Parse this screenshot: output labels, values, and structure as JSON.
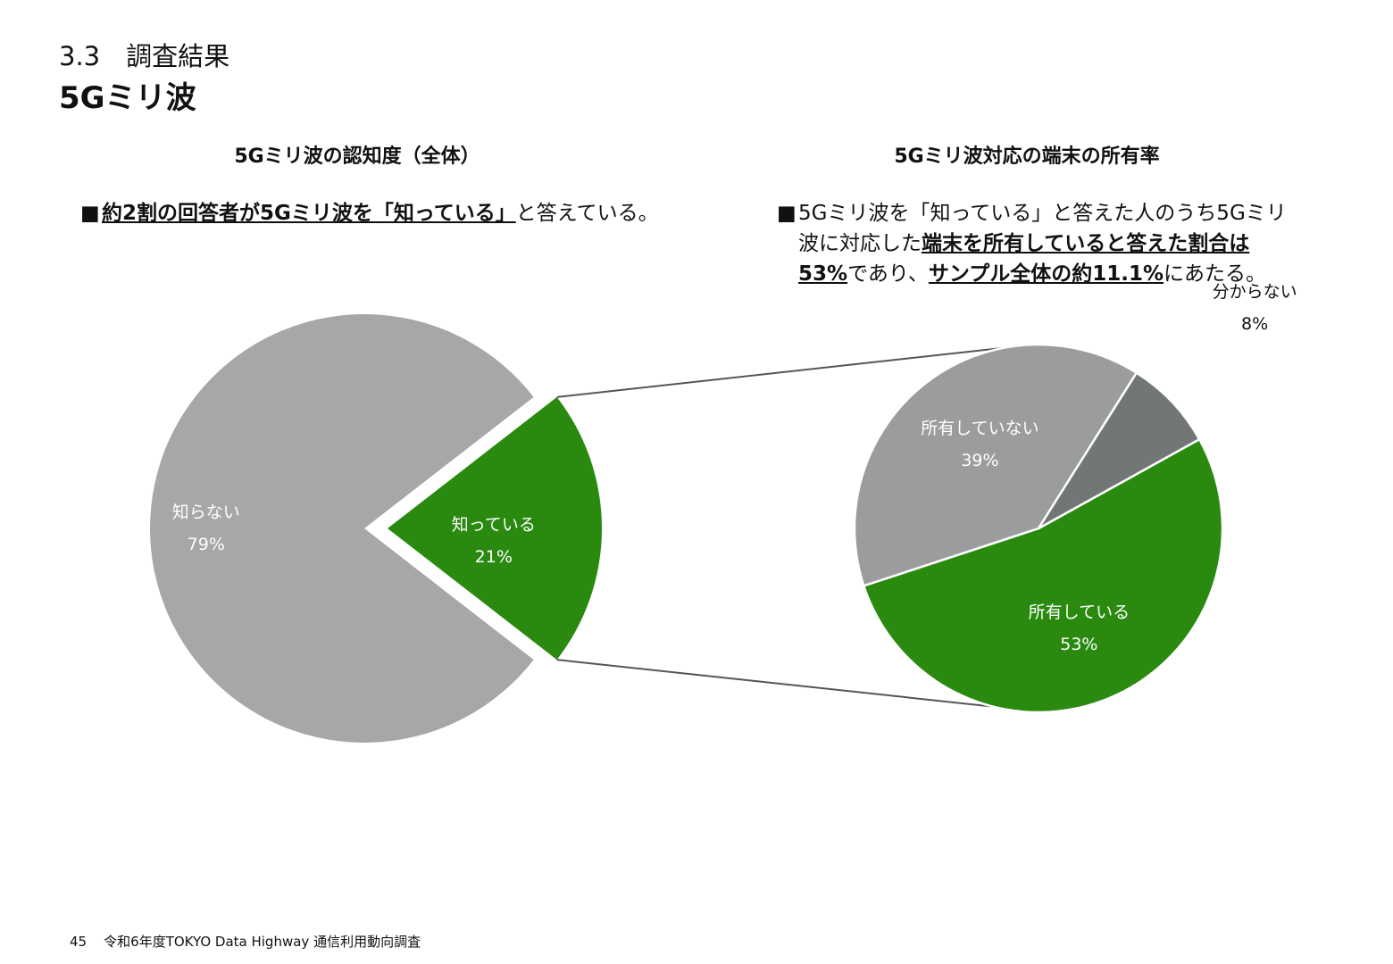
{
  "header": {
    "section_number": "3.3　調査結果",
    "title": "5Gミリ波"
  },
  "left_panel": {
    "title": "5Gミリ波の認知度（全体）",
    "bullet_mark": "■",
    "bullet_underlined": "約2割の回答者が5Gミリ波を「知っている」",
    "bullet_rest": "と答えている。"
  },
  "right_panel": {
    "title": "5Gミリ波対応の端末の所有率",
    "bullet_mark": "■",
    "bullet_part1": "5Gミリ波を「知っている」と答えた人のうち5Gミリ波に対応した",
    "bullet_underlined1": "端末を所有していると答えた割合は53%",
    "bullet_part2": "であり、",
    "bullet_underlined2": "サンプル全体の約11.1%",
    "bullet_part3": "にあたる。"
  },
  "chart_data": [
    {
      "type": "pie",
      "title": "5Gミリ波の認知度（全体）",
      "slices": [
        {
          "label": "知らない",
          "value": 79,
          "display": "79%",
          "color": "#a6a7a8",
          "label_color": "#ffffff"
        },
        {
          "label": "知っている",
          "value": 21,
          "display": "21%",
          "color": "#2a8a10",
          "label_color": "#ffffff",
          "exploded": true
        }
      ]
    },
    {
      "type": "pie",
      "title": "5Gミリ波対応の端末の所有率",
      "slices": [
        {
          "label": "所有している",
          "value": 53,
          "display": "53%",
          "color": "#2a8a10",
          "label_color": "#ffffff"
        },
        {
          "label": "所有していない",
          "value": 39,
          "display": "39%",
          "color": "#9b9c9e",
          "label_color": "#ffffff"
        },
        {
          "label": "分からない",
          "value": 8,
          "display": "8%",
          "color": "#737677",
          "label_color": "#111111",
          "label_outside": true
        }
      ]
    }
  ],
  "footer": {
    "page_number": "45",
    "text": "令和6年度TOKYO Data Highway 通信利用動向調査"
  }
}
